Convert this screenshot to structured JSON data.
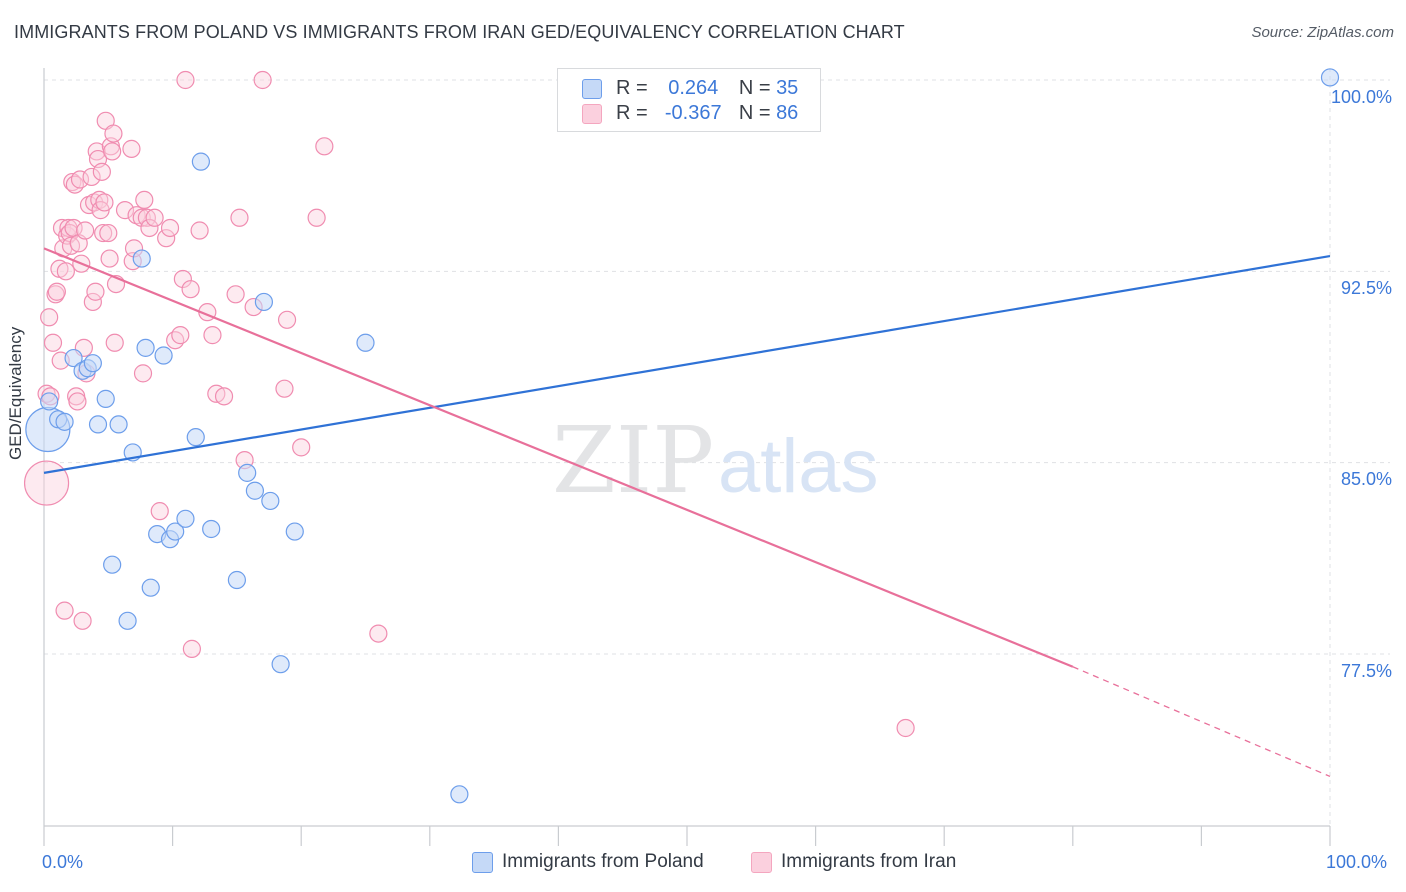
{
  "title": "IMMIGRANTS FROM POLAND VS IMMIGRANTS FROM IRAN GED/EQUIVALENCY CORRELATION CHART",
  "source": "Source: ZipAtlas.com",
  "watermark": {
    "zip": "ZIP",
    "atlas": "atlas"
  },
  "legend": {
    "poland": {
      "r_label": "R =",
      "r_value": "0.264",
      "n_label": "N =",
      "n_value": "35"
    },
    "iran": {
      "r_label": "R =",
      "r_value": "-0.367",
      "n_label": "N =",
      "n_value": "86"
    }
  },
  "colors": {
    "poland": "#6d9eeb",
    "iran": "#f4a6bf",
    "poland_line": "#2f72d6",
    "iran_line": "#e8709a",
    "axis_text": "#3c78d8"
  },
  "chart_data": {
    "type": "scatter",
    "title": "IMMIGRANTS FROM POLAND VS IMMIGRANTS FROM IRAN GED/EQUIVALENCY CORRELATION CHART",
    "xlabel": "",
    "ylabel": "GED/Equivalency",
    "xlim": [
      0,
      100
    ],
    "ylim": [
      71.5,
      101.0
    ],
    "x_ticks": [
      "0.0%",
      "100.0%"
    ],
    "y_ticks": [
      {
        "value": 100.0,
        "label": "100.0%"
      },
      {
        "value": 92.5,
        "label": "92.5%"
      },
      {
        "value": 85.0,
        "label": "85.0%"
      },
      {
        "value": 77.5,
        "label": "77.5%"
      }
    ],
    "grid": true,
    "legend_position": "top-center",
    "series": [
      {
        "name": "Immigrants from Poland",
        "color": "#6d9eeb",
        "trend": {
          "x": [
            0,
            100
          ],
          "y": [
            84.6,
            93.1
          ]
        },
        "points": [
          {
            "x": 0.3,
            "y": 86.3,
            "big": true
          },
          {
            "x": 0.4,
            "y": 87.4
          },
          {
            "x": 1.1,
            "y": 86.7
          },
          {
            "x": 1.6,
            "y": 86.6
          },
          {
            "x": 2.3,
            "y": 89.1
          },
          {
            "x": 3.0,
            "y": 88.6
          },
          {
            "x": 3.4,
            "y": 88.7
          },
          {
            "x": 3.8,
            "y": 88.9
          },
          {
            "x": 4.2,
            "y": 86.5
          },
          {
            "x": 4.8,
            "y": 87.5
          },
          {
            "x": 5.3,
            "y": 81.0
          },
          {
            "x": 5.8,
            "y": 86.5
          },
          {
            "x": 6.5,
            "y": 78.8
          },
          {
            "x": 6.9,
            "y": 85.4
          },
          {
            "x": 7.6,
            "y": 93.0
          },
          {
            "x": 7.9,
            "y": 89.5
          },
          {
            "x": 8.3,
            "y": 80.1
          },
          {
            "x": 8.8,
            "y": 82.2
          },
          {
            "x": 9.3,
            "y": 89.2
          },
          {
            "x": 9.8,
            "y": 82.0
          },
          {
            "x": 10.2,
            "y": 82.3
          },
          {
            "x": 11.0,
            "y": 82.8
          },
          {
            "x": 11.8,
            "y": 86.0
          },
          {
            "x": 12.2,
            "y": 96.8
          },
          {
            "x": 13.0,
            "y": 82.4
          },
          {
            "x": 15.0,
            "y": 80.4
          },
          {
            "x": 15.8,
            "y": 84.6
          },
          {
            "x": 16.4,
            "y": 83.9
          },
          {
            "x": 17.1,
            "y": 91.3
          },
          {
            "x": 17.6,
            "y": 83.5
          },
          {
            "x": 18.4,
            "y": 77.1
          },
          {
            "x": 19.5,
            "y": 82.3
          },
          {
            "x": 25.0,
            "y": 89.7
          },
          {
            "x": 32.3,
            "y": 72.0
          },
          {
            "x": 100.0,
            "y": 100.1
          }
        ]
      },
      {
        "name": "Immigrants from Iran",
        "color": "#f4a6bf",
        "trend": {
          "x": [
            0,
            80
          ],
          "y": [
            93.4,
            77.0
          ]
        },
        "trend_dashed": {
          "x": [
            80,
            100
          ],
          "y": [
            77.0,
            72.7
          ]
        },
        "points": [
          {
            "x": 0.2,
            "y": 84.2,
            "big": true
          },
          {
            "x": 0.2,
            "y": 87.7
          },
          {
            "x": 0.4,
            "y": 90.7
          },
          {
            "x": 0.5,
            "y": 87.6
          },
          {
            "x": 0.7,
            "y": 89.7
          },
          {
            "x": 0.9,
            "y": 91.6
          },
          {
            "x": 1.0,
            "y": 91.7
          },
          {
            "x": 1.2,
            "y": 92.6
          },
          {
            "x": 1.3,
            "y": 89.0
          },
          {
            "x": 1.4,
            "y": 94.2
          },
          {
            "x": 1.5,
            "y": 93.4
          },
          {
            "x": 1.6,
            "y": 79.2
          },
          {
            "x": 1.7,
            "y": 92.5
          },
          {
            "x": 1.8,
            "y": 93.9
          },
          {
            "x": 1.9,
            "y": 94.2
          },
          {
            "x": 2.0,
            "y": 94.0
          },
          {
            "x": 2.1,
            "y": 93.5
          },
          {
            "x": 2.2,
            "y": 96.0
          },
          {
            "x": 2.3,
            "y": 94.2
          },
          {
            "x": 2.4,
            "y": 95.9
          },
          {
            "x": 2.5,
            "y": 87.6
          },
          {
            "x": 2.6,
            "y": 87.4
          },
          {
            "x": 2.7,
            "y": 93.6
          },
          {
            "x": 2.8,
            "y": 96.1
          },
          {
            "x": 2.9,
            "y": 92.8
          },
          {
            "x": 3.0,
            "y": 78.8
          },
          {
            "x": 3.1,
            "y": 89.5
          },
          {
            "x": 3.2,
            "y": 94.1
          },
          {
            "x": 3.3,
            "y": 88.5
          },
          {
            "x": 3.5,
            "y": 95.1
          },
          {
            "x": 3.7,
            "y": 96.2
          },
          {
            "x": 3.8,
            "y": 91.3
          },
          {
            "x": 3.9,
            "y": 95.2
          },
          {
            "x": 4.0,
            "y": 91.7
          },
          {
            "x": 4.1,
            "y": 97.2
          },
          {
            "x": 4.2,
            "y": 96.9
          },
          {
            "x": 4.3,
            "y": 95.3
          },
          {
            "x": 4.4,
            "y": 94.9
          },
          {
            "x": 4.5,
            "y": 96.4
          },
          {
            "x": 4.6,
            "y": 94.0
          },
          {
            "x": 4.7,
            "y": 95.2
          },
          {
            "x": 4.8,
            "y": 98.4
          },
          {
            "x": 5.0,
            "y": 94.0
          },
          {
            "x": 5.1,
            "y": 93.0
          },
          {
            "x": 5.2,
            "y": 97.4
          },
          {
            "x": 5.3,
            "y": 97.2
          },
          {
            "x": 5.4,
            "y": 97.9
          },
          {
            "x": 5.5,
            "y": 89.7
          },
          {
            "x": 5.6,
            "y": 92.0
          },
          {
            "x": 6.3,
            "y": 94.9
          },
          {
            "x": 6.8,
            "y": 97.3
          },
          {
            "x": 6.9,
            "y": 92.9
          },
          {
            "x": 7.0,
            "y": 93.4
          },
          {
            "x": 7.2,
            "y": 94.7
          },
          {
            "x": 7.6,
            "y": 94.6
          },
          {
            "x": 7.7,
            "y": 88.5
          },
          {
            "x": 7.8,
            "y": 95.3
          },
          {
            "x": 8.0,
            "y": 94.6
          },
          {
            "x": 8.2,
            "y": 94.2
          },
          {
            "x": 8.6,
            "y": 94.6
          },
          {
            "x": 9.0,
            "y": 83.1
          },
          {
            "x": 9.5,
            "y": 93.8
          },
          {
            "x": 9.8,
            "y": 94.2
          },
          {
            "x": 10.2,
            "y": 89.8
          },
          {
            "x": 10.6,
            "y": 90.0
          },
          {
            "x": 10.8,
            "y": 92.2
          },
          {
            "x": 11.0,
            "y": 100.0
          },
          {
            "x": 11.4,
            "y": 91.8
          },
          {
            "x": 11.5,
            "y": 77.7
          },
          {
            "x": 12.1,
            "y": 94.1
          },
          {
            "x": 12.7,
            "y": 90.9
          },
          {
            "x": 13.1,
            "y": 90.0
          },
          {
            "x": 13.4,
            "y": 87.7
          },
          {
            "x": 14.0,
            "y": 87.6
          },
          {
            "x": 14.9,
            "y": 91.6
          },
          {
            "x": 15.2,
            "y": 94.6
          },
          {
            "x": 15.6,
            "y": 85.1
          },
          {
            "x": 16.3,
            "y": 91.1
          },
          {
            "x": 17.0,
            "y": 100.0
          },
          {
            "x": 18.7,
            "y": 87.9
          },
          {
            "x": 18.9,
            "y": 90.6
          },
          {
            "x": 20.0,
            "y": 85.6
          },
          {
            "x": 21.2,
            "y": 94.6
          },
          {
            "x": 21.8,
            "y": 97.4
          },
          {
            "x": 26.0,
            "y": 78.3
          },
          {
            "x": 67.0,
            "y": 74.6
          }
        ]
      }
    ]
  },
  "bottom_legend": {
    "poland": "Immigrants from Poland",
    "iran": "Immigrants from Iran"
  }
}
